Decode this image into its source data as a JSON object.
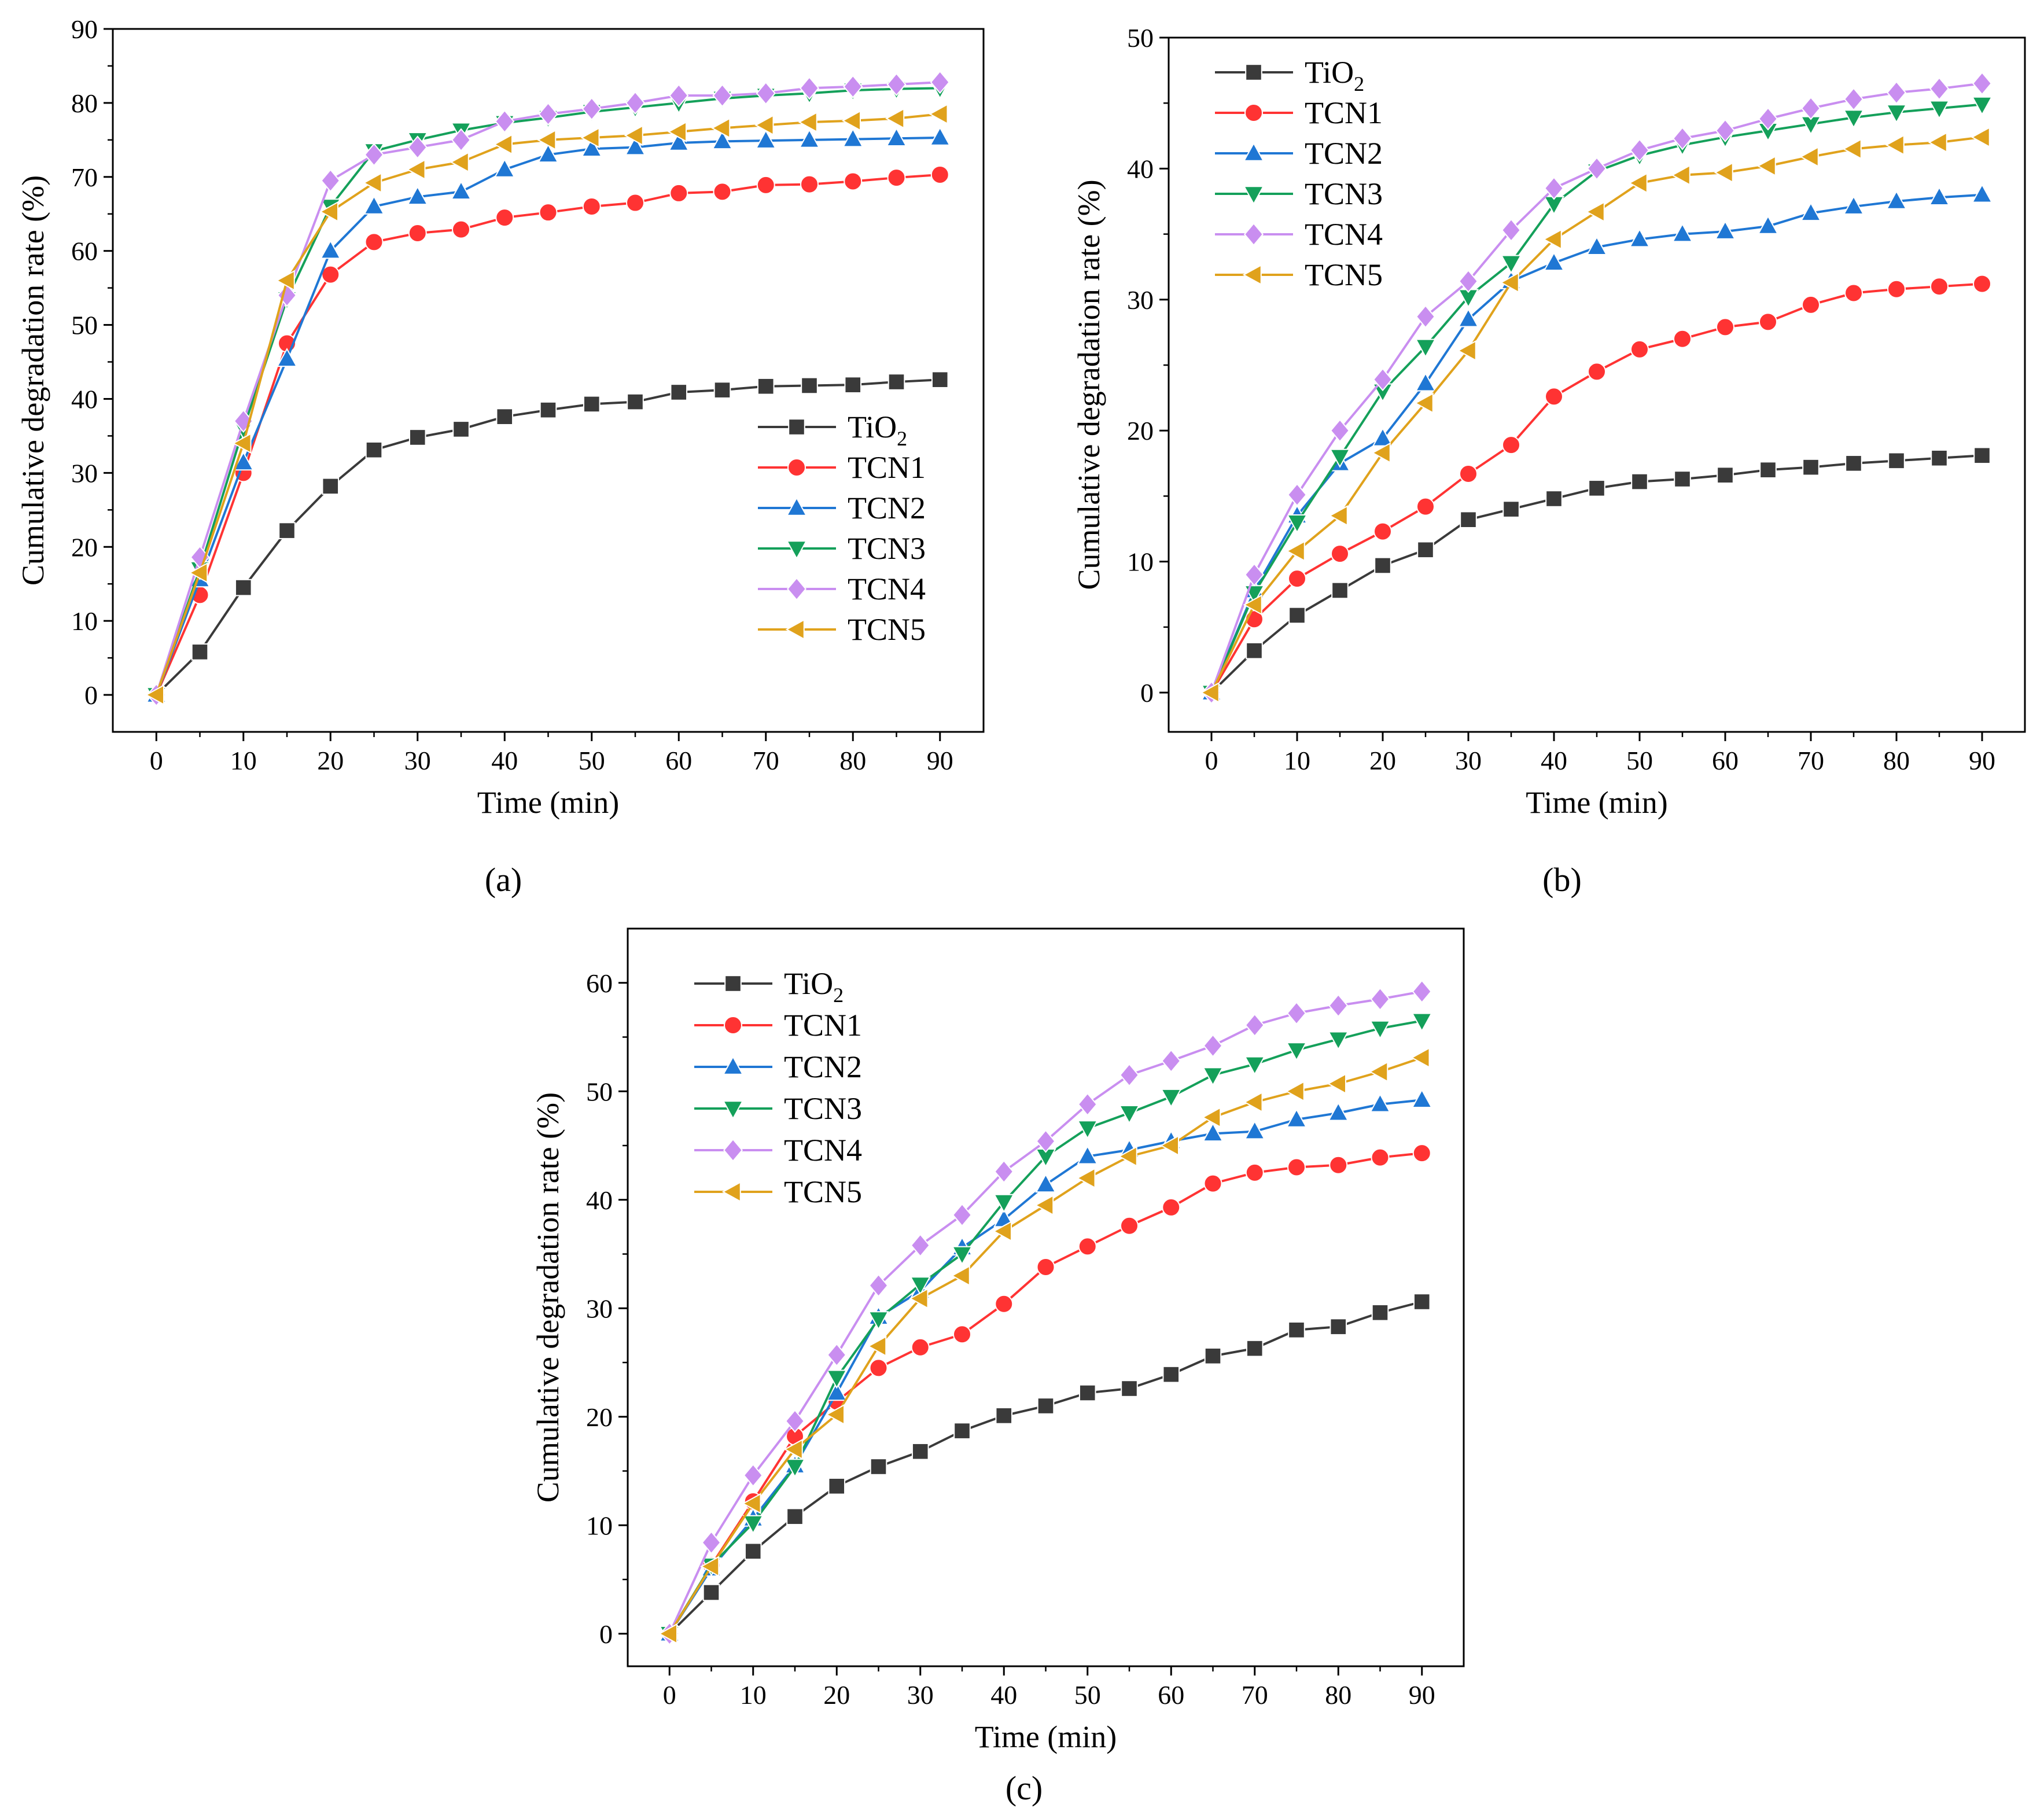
{
  "figure": {
    "panel_labels": [
      "(a)",
      "(b)",
      "(c)"
    ]
  },
  "series_styles": [
    {
      "name": "TiO2",
      "display": "TiO",
      "subscript": "2",
      "color": "#3a3a3a",
      "marker": "square"
    },
    {
      "name": "TCN1",
      "display": "TCN1",
      "subscript": "",
      "color": "#ff3333",
      "marker": "circle"
    },
    {
      "name": "TCN2",
      "display": "TCN2",
      "subscript": "",
      "color": "#1f77d4",
      "marker": "triangle-up"
    },
    {
      "name": "TCN3",
      "display": "TCN3",
      "subscript": "",
      "color": "#14a05a",
      "marker": "triangle-down"
    },
    {
      "name": "TCN4",
      "display": "TCN4",
      "subscript": "",
      "color": "#c98ef0",
      "marker": "diamond"
    },
    {
      "name": "TCN5",
      "display": "TCN5",
      "subscript": "",
      "color": "#e0a21c",
      "marker": "triangle-left"
    }
  ],
  "chart_data": [
    {
      "type": "line",
      "panel": "(a)",
      "xlabel": "Time (min)",
      "ylabel": "Cumulative degradation rate (%)",
      "xlim": [
        -5,
        95
      ],
      "ylim": [
        -5,
        90
      ],
      "xticks": [
        0,
        10,
        20,
        30,
        40,
        50,
        60,
        70,
        80,
        90
      ],
      "yticks": [
        0,
        10,
        20,
        30,
        40,
        50,
        60,
        70,
        80,
        90
      ],
      "legend_position": "bottom-right",
      "x": [
        0,
        5,
        10,
        15,
        20,
        25,
        30,
        35,
        40,
        45,
        50,
        55,
        60,
        65,
        70,
        75,
        80,
        85,
        90
      ],
      "series": [
        {
          "name": "TiO2",
          "values": [
            0,
            5.8,
            14.5,
            22.2,
            28.2,
            33.1,
            34.8,
            35.9,
            37.6,
            38.5,
            39.3,
            39.6,
            40.9,
            41.2,
            41.7,
            41.8,
            41.9,
            42.3,
            42.6
          ]
        },
        {
          "name": "TCN1",
          "values": [
            0,
            13.5,
            30.0,
            47.5,
            56.8,
            61.2,
            62.4,
            62.9,
            64.5,
            65.2,
            66.0,
            66.5,
            67.8,
            68.0,
            68.9,
            69.0,
            69.4,
            69.9,
            70.3
          ]
        },
        {
          "name": "TCN2",
          "values": [
            0,
            15.6,
            31.4,
            45.4,
            60.0,
            66.0,
            67.3,
            68.0,
            71.0,
            73.0,
            73.8,
            74.0,
            74.6,
            74.8,
            74.9,
            75.0,
            75.1,
            75.2,
            75.3
          ]
        },
        {
          "name": "TCN3",
          "values": [
            0,
            17.0,
            36.0,
            53.5,
            66.0,
            73.5,
            75.0,
            76.3,
            77.3,
            78.0,
            78.8,
            79.4,
            80.0,
            80.6,
            81.0,
            81.3,
            81.7,
            81.9,
            82.0
          ]
        },
        {
          "name": "TCN4",
          "values": [
            0,
            18.6,
            37.0,
            54.0,
            69.5,
            73.0,
            74.0,
            75.0,
            77.5,
            78.5,
            79.2,
            80.0,
            81.0,
            81.0,
            81.3,
            82.0,
            82.2,
            82.5,
            82.8
          ]
        },
        {
          "name": "TCN5",
          "values": [
            0,
            16.5,
            34.0,
            56.0,
            65.3,
            69.2,
            71.0,
            72.0,
            74.4,
            75.0,
            75.3,
            75.6,
            76.1,
            76.6,
            77.0,
            77.4,
            77.6,
            77.9,
            78.5
          ]
        }
      ]
    },
    {
      "type": "line",
      "panel": "(b)",
      "xlabel": "Time (min)",
      "ylabel": "Cumulative degradation rate (%)",
      "xlim": [
        -5,
        95
      ],
      "ylim": [
        -3,
        50
      ],
      "xticks": [
        0,
        10,
        20,
        30,
        40,
        50,
        60,
        70,
        80,
        90
      ],
      "yticks": [
        0,
        10,
        20,
        30,
        40,
        50
      ],
      "legend_position": "top-left",
      "x": [
        0,
        5,
        10,
        15,
        20,
        25,
        30,
        35,
        40,
        45,
        50,
        55,
        60,
        65,
        70,
        75,
        80,
        85,
        90
      ],
      "series": [
        {
          "name": "TiO2",
          "values": [
            0,
            3.2,
            5.9,
            7.8,
            9.7,
            10.9,
            13.2,
            14.0,
            14.8,
            15.6,
            16.1,
            16.3,
            16.6,
            17.0,
            17.2,
            17.5,
            17.7,
            17.9,
            18.1
          ]
        },
        {
          "name": "TCN1",
          "values": [
            0,
            5.6,
            8.7,
            10.6,
            12.3,
            14.2,
            16.7,
            18.9,
            22.6,
            24.5,
            26.2,
            27.0,
            27.9,
            28.3,
            29.6,
            30.5,
            30.8,
            31.0,
            31.2
          ]
        },
        {
          "name": "TCN2",
          "values": [
            0,
            7.8,
            13.5,
            17.5,
            19.4,
            23.6,
            28.5,
            31.4,
            32.8,
            34.0,
            34.6,
            35.0,
            35.2,
            35.6,
            36.6,
            37.1,
            37.5,
            37.8,
            38.0
          ]
        },
        {
          "name": "TCN3",
          "values": [
            0,
            7.6,
            13.0,
            18.0,
            23.0,
            26.4,
            30.2,
            32.8,
            37.3,
            39.8,
            41.0,
            41.8,
            42.4,
            42.9,
            43.4,
            43.9,
            44.3,
            44.6,
            44.9
          ]
        },
        {
          "name": "TCN4",
          "values": [
            0,
            9.0,
            15.1,
            20.0,
            23.9,
            28.7,
            31.4,
            35.3,
            38.5,
            40.0,
            41.4,
            42.3,
            42.9,
            43.8,
            44.6,
            45.3,
            45.8,
            46.1,
            46.5
          ]
        },
        {
          "name": "TCN5",
          "values": [
            0,
            6.7,
            10.8,
            13.5,
            18.3,
            22.1,
            26.1,
            31.3,
            34.6,
            36.7,
            38.9,
            39.5,
            39.7,
            40.2,
            40.9,
            41.5,
            41.8,
            42.0,
            42.4
          ]
        }
      ]
    },
    {
      "type": "line",
      "panel": "(c)",
      "xlabel": "Time (min)",
      "ylabel": "Cumulative degradation rate (%)",
      "xlim": [
        -5,
        95
      ],
      "ylim": [
        -3,
        65
      ],
      "xticks": [
        0,
        10,
        20,
        30,
        40,
        50,
        60,
        70,
        80,
        90
      ],
      "yticks": [
        0,
        10,
        20,
        30,
        40,
        50,
        60
      ],
      "legend_position": "top-left",
      "x": [
        0,
        5,
        10,
        15,
        20,
        25,
        30,
        35,
        40,
        45,
        50,
        55,
        60,
        65,
        70,
        75,
        80,
        85,
        90
      ],
      "series": [
        {
          "name": "TiO2",
          "values": [
            0,
            3.8,
            7.6,
            10.8,
            13.6,
            15.4,
            16.8,
            18.7,
            20.1,
            21.0,
            22.2,
            22.6,
            23.9,
            25.6,
            26.3,
            28.0,
            28.3,
            29.6,
            30.6
          ]
        },
        {
          "name": "TCN1",
          "values": [
            0,
            6.3,
            12.2,
            18.2,
            21.4,
            24.5,
            26.4,
            27.6,
            30.4,
            33.8,
            35.7,
            37.6,
            39.3,
            41.5,
            42.5,
            43.0,
            43.2,
            43.9,
            44.3
          ]
        },
        {
          "name": "TCN2",
          "values": [
            0,
            6.0,
            10.6,
            15.5,
            22.2,
            29.2,
            31.6,
            35.6,
            38.2,
            41.4,
            44.0,
            44.6,
            45.4,
            46.1,
            46.3,
            47.4,
            48.0,
            48.8,
            49.2
          ]
        },
        {
          "name": "TCN3",
          "values": [
            0,
            6.3,
            10.2,
            15.4,
            23.6,
            29.0,
            32.2,
            35.0,
            39.8,
            44.0,
            46.6,
            48.0,
            49.5,
            51.5,
            52.5,
            53.8,
            54.8,
            55.8,
            56.5
          ]
        },
        {
          "name": "TCN4",
          "values": [
            0,
            8.4,
            14.6,
            19.6,
            25.7,
            32.1,
            35.8,
            38.6,
            42.6,
            45.4,
            48.8,
            51.5,
            52.8,
            54.2,
            56.1,
            57.2,
            57.9,
            58.5,
            59.2
          ]
        },
        {
          "name": "TCN5",
          "values": [
            0,
            6.2,
            12.0,
            17.0,
            20.2,
            26.5,
            30.9,
            33.0,
            37.1,
            39.5,
            42.0,
            44.0,
            45.0,
            47.6,
            49.0,
            50.0,
            50.7,
            51.8,
            53.1
          ]
        }
      ]
    }
  ]
}
